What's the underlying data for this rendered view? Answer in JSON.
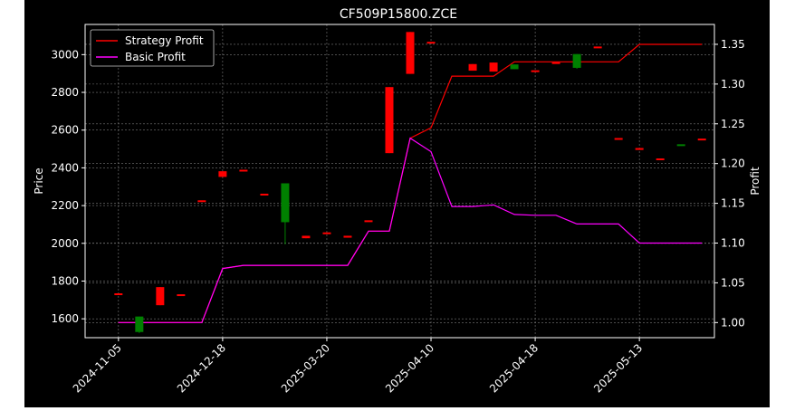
{
  "chart_data": {
    "type": "candlestick",
    "title": "CF509P15800.ZCE",
    "ylabel": "Price",
    "y2label": "Profit",
    "ylim": [
      1500,
      3160
    ],
    "y2lim": [
      0.981,
      1.375
    ],
    "yticks": [
      1600,
      1800,
      2000,
      2200,
      2400,
      2600,
      2800,
      3000
    ],
    "y2ticks": [
      "1.00",
      "1.05",
      "1.10",
      "1.15",
      "1.20",
      "1.25",
      "1.30",
      "1.35"
    ],
    "xtick_labels": [
      "2024-11-05",
      "2024-12-18",
      "2025-03-20",
      "2025-04-10",
      "2025-04-18",
      "2025-05-13"
    ],
    "xtick_index": [
      0,
      5,
      10,
      15,
      20,
      25
    ],
    "x_index_range": [
      -1.6,
      28.6
    ],
    "grid": true,
    "legend_position": "top-left",
    "candles": [
      {
        "i": 0,
        "open": 1735,
        "close": 1735,
        "high": 1735,
        "low": 1735,
        "color": "red"
      },
      {
        "i": 1,
        "open": 1612,
        "close": 1530,
        "high": 1612,
        "low": 1525,
        "color": "green"
      },
      {
        "i": 2,
        "open": 1672,
        "close": 1768,
        "high": 1768,
        "low": 1672,
        "color": "red"
      },
      {
        "i": 3,
        "open": 1730,
        "close": 1730,
        "high": 1730,
        "low": 1730,
        "color": "red"
      },
      {
        "i": 4,
        "open": 2228,
        "close": 2228,
        "high": 2228,
        "low": 2228,
        "color": "red"
      },
      {
        "i": 5,
        "open": 2352,
        "close": 2382,
        "high": 2382,
        "low": 2352,
        "color": "red"
      },
      {
        "i": 6,
        "open": 2390,
        "close": 2390,
        "high": 2390,
        "low": 2390,
        "color": "red"
      },
      {
        "i": 7,
        "open": 2263,
        "close": 2263,
        "high": 2263,
        "low": 2263,
        "color": "red"
      },
      {
        "i": 8,
        "open": 2318,
        "close": 2112,
        "high": 2318,
        "low": 1995,
        "color": "green"
      },
      {
        "i": 9,
        "open": 2027,
        "close": 2040,
        "high": 2040,
        "low": 2027,
        "color": "red"
      },
      {
        "i": 10,
        "open": 2058,
        "close": 2058,
        "high": 2058,
        "low": 2058,
        "color": "red"
      },
      {
        "i": 11,
        "open": 2030,
        "close": 2040,
        "high": 2040,
        "low": 2030,
        "color": "red"
      },
      {
        "i": 12,
        "open": 2122,
        "close": 2122,
        "high": 2122,
        "low": 2122,
        "color": "red"
      },
      {
        "i": 13,
        "open": 2478,
        "close": 2828,
        "high": 2828,
        "low": 2478,
        "color": "red"
      },
      {
        "i": 14,
        "open": 2898,
        "close": 3120,
        "high": 3120,
        "low": 2898,
        "color": "red"
      },
      {
        "i": 15,
        "open": 3068,
        "close": 3068,
        "high": 3068,
        "low": 3068,
        "color": "red"
      },
      {
        "i": 17,
        "open": 2915,
        "close": 2950,
        "high": 2950,
        "low": 2915,
        "color": "red"
      },
      {
        "i": 18,
        "open": 2910,
        "close": 2958,
        "high": 2958,
        "low": 2910,
        "color": "red"
      },
      {
        "i": 19,
        "open": 2948,
        "close": 2923,
        "high": 2948,
        "low": 2923,
        "color": "green"
      },
      {
        "i": 20,
        "open": 2917,
        "close": 2917,
        "high": 2917,
        "low": 2917,
        "color": "red"
      },
      {
        "i": 21,
        "open": 2960,
        "close": 2960,
        "high": 2960,
        "low": 2960,
        "color": "red"
      },
      {
        "i": 22,
        "open": 3003,
        "close": 2930,
        "high": 3003,
        "low": 2925,
        "color": "green"
      },
      {
        "i": 23,
        "open": 3043,
        "close": 3043,
        "high": 3043,
        "low": 3043,
        "color": "red"
      },
      {
        "i": 24,
        "open": 2558,
        "close": 2558,
        "high": 2558,
        "low": 2558,
        "color": "red"
      },
      {
        "i": 25,
        "open": 2495,
        "close": 2505,
        "high": 2505,
        "low": 2495,
        "color": "red"
      },
      {
        "i": 26,
        "open": 2450,
        "close": 2450,
        "high": 2450,
        "low": 2450,
        "color": "red"
      },
      {
        "i": 27,
        "open": 2525,
        "close": 2525,
        "high": 2525,
        "low": 2525,
        "color": "green"
      },
      {
        "i": 28,
        "open": 2555,
        "close": 2555,
        "high": 2555,
        "low": 2555,
        "color": "red"
      }
    ],
    "series": [
      {
        "name": "Strategy Profit",
        "color": "#ff0000",
        "axis": "right",
        "x": [
          0,
          1,
          2,
          3,
          4,
          5,
          6,
          7,
          8,
          9,
          10,
          11,
          12,
          13,
          14,
          15,
          16,
          17,
          18,
          19,
          20,
          21,
          22,
          23,
          24,
          25,
          26,
          27,
          28
        ],
        "values": [
          1.0,
          1.0,
          1.0,
          1.0,
          1.0,
          1.068,
          1.072,
          1.072,
          1.072,
          1.072,
          1.072,
          1.072,
          1.115,
          1.115,
          1.232,
          1.245,
          1.31,
          1.31,
          1.31,
          1.328,
          1.328,
          1.328,
          1.328,
          1.328,
          1.328,
          1.35,
          1.35,
          1.35,
          1.35
        ]
      },
      {
        "name": "Basic Profit",
        "color": "#ff00ff",
        "axis": "right",
        "x": [
          0,
          1,
          2,
          3,
          4,
          5,
          6,
          7,
          8,
          9,
          10,
          11,
          12,
          13,
          14,
          15,
          16,
          17,
          18,
          19,
          20,
          21,
          22,
          23,
          24,
          25,
          26,
          27,
          28
        ],
        "values": [
          1.0,
          1.0,
          1.0,
          1.0,
          1.0,
          1.068,
          1.072,
          1.072,
          1.072,
          1.072,
          1.072,
          1.072,
          1.115,
          1.115,
          1.232,
          1.215,
          1.146,
          1.146,
          1.148,
          1.136,
          1.135,
          1.135,
          1.124,
          1.124,
          1.124,
          1.1,
          1.1,
          1.1,
          1.1
        ]
      }
    ]
  }
}
